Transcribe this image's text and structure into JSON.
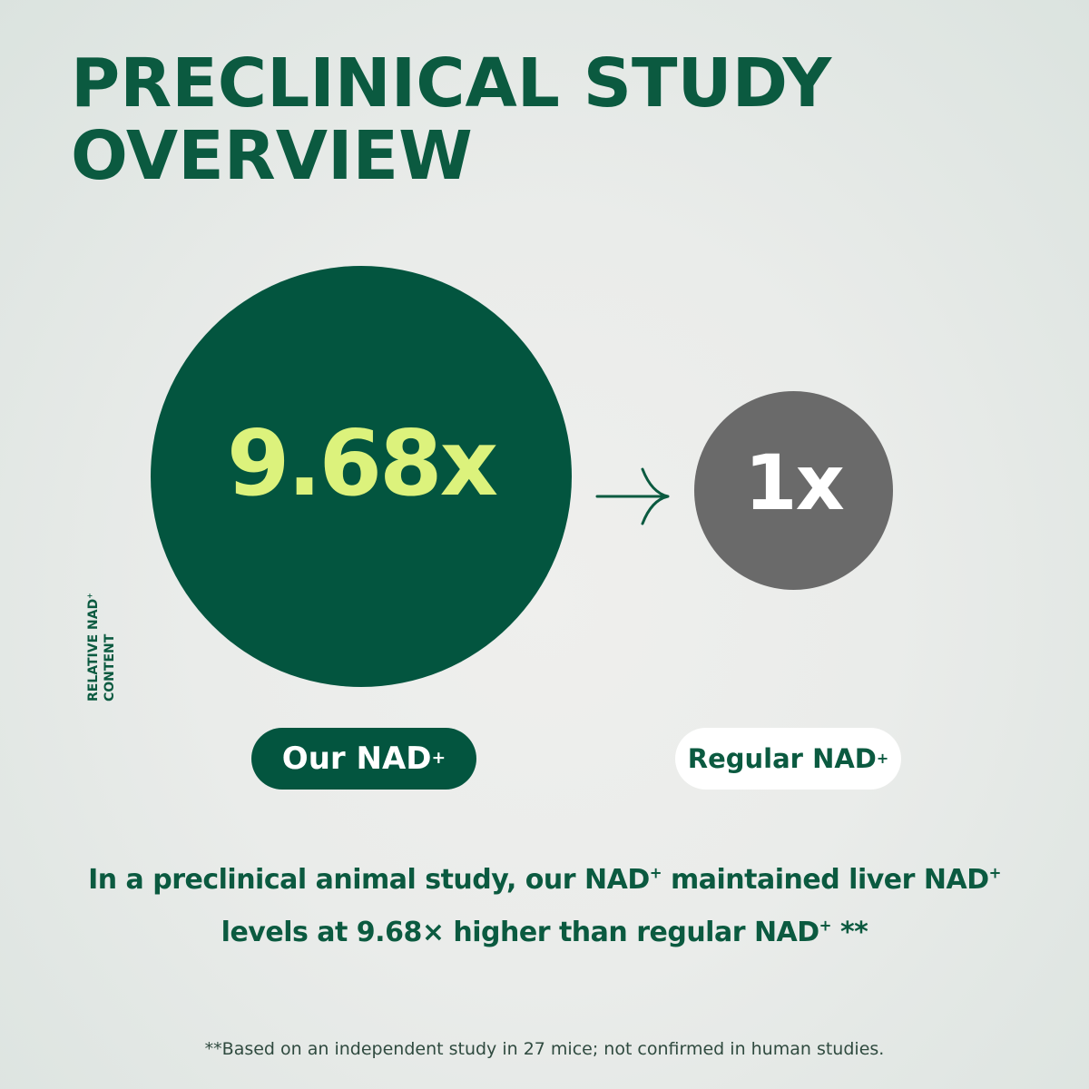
{
  "title": {
    "line1": "PRECLINICAL STUDY",
    "line2": "OVERVIEW"
  },
  "axis_label": {
    "line1": "RELATIVE NAD",
    "line1_sup": "+",
    "line2": "CONTENT"
  },
  "comparison": {
    "ours": {
      "value": "9.68x",
      "label": "Our NAD",
      "label_sup": "+"
    },
    "regular": {
      "value": "1x",
      "label": "Regular NAD",
      "label_sup": "+"
    }
  },
  "description": {
    "line1_a": "In a preclinical animal study, our NAD",
    "line1_sup1": "+",
    "line1_b": " maintained liver NAD",
    "line1_sup2": "+",
    "line2_a": "levels at 9.68× higher than regular NAD",
    "line2_sup": "+",
    "line2_b": " **"
  },
  "footnote": "**Based on an independent study in 27 mice; not confirmed in human studies.",
  "colors": {
    "brand_green": "#03553f",
    "title_green": "#0b5a40",
    "accent_lime": "#dcf27c",
    "regular_gray": "#6a6a6a",
    "pill_white": "#ffffff"
  },
  "icons": {
    "arrow": "arrow-right-icon"
  }
}
